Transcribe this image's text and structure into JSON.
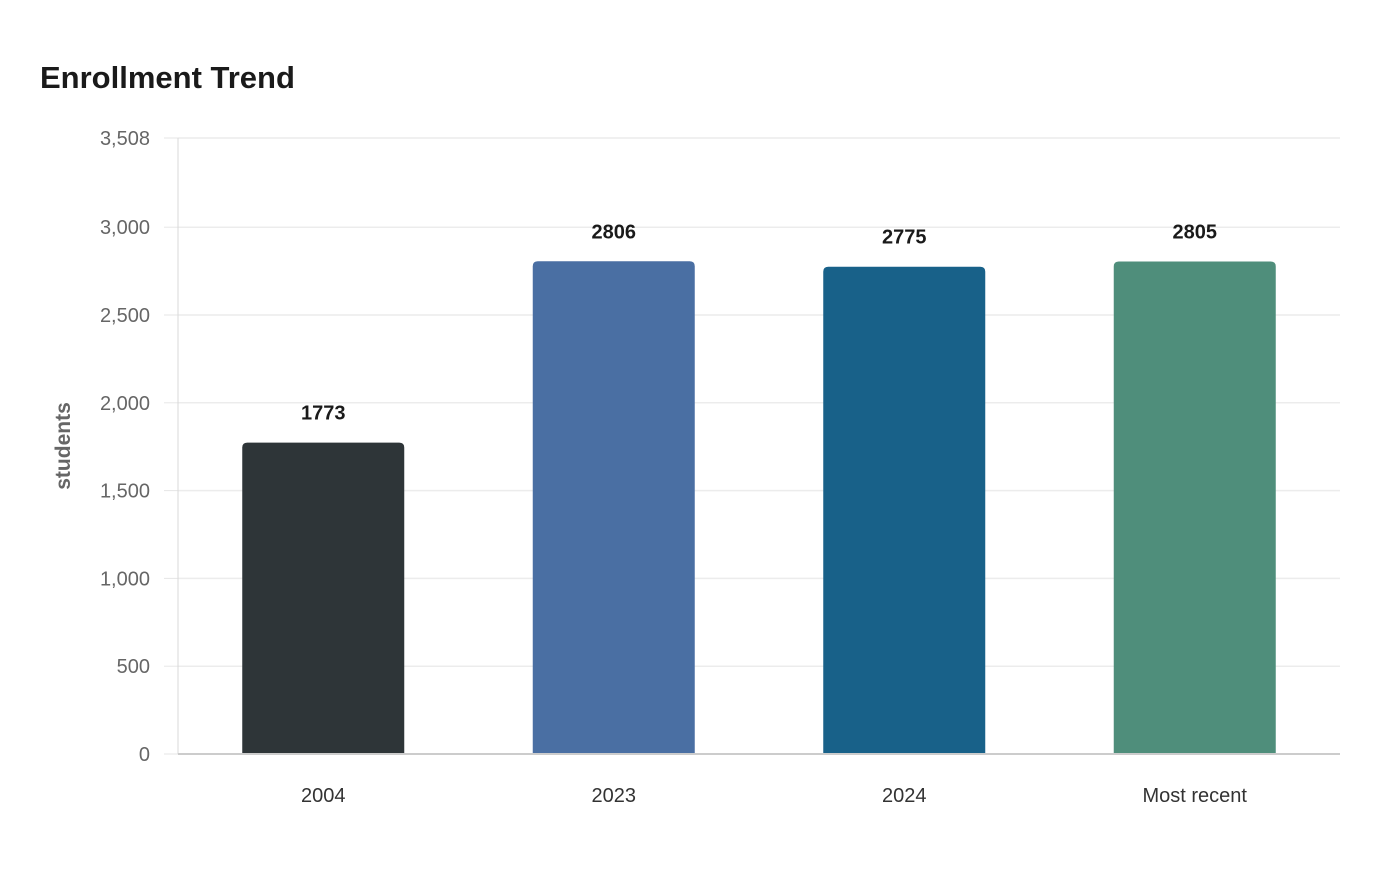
{
  "chart_data": {
    "type": "bar",
    "title": "Enrollment Trend",
    "xlabel": "",
    "ylabel": "students",
    "categories": [
      "2004",
      "2023",
      "2024",
      "Most recent"
    ],
    "values": [
      1773,
      2806,
      2775,
      2805
    ],
    "value_labels": [
      "1773",
      "2806",
      "2775",
      "2805"
    ],
    "colors": [
      "#2e3538",
      "#4a6fa3",
      "#186189",
      "#4f8e7b"
    ],
    "ylim": [
      0,
      3508
    ],
    "yticks": [
      0,
      500,
      1000,
      1500,
      2000,
      2500,
      3000,
      3508
    ],
    "ytick_labels": [
      "0",
      "500",
      "1,000",
      "1,500",
      "2,000",
      "2,500",
      "3,000",
      "3,508"
    ],
    "grid": true,
    "legend": "none"
  }
}
